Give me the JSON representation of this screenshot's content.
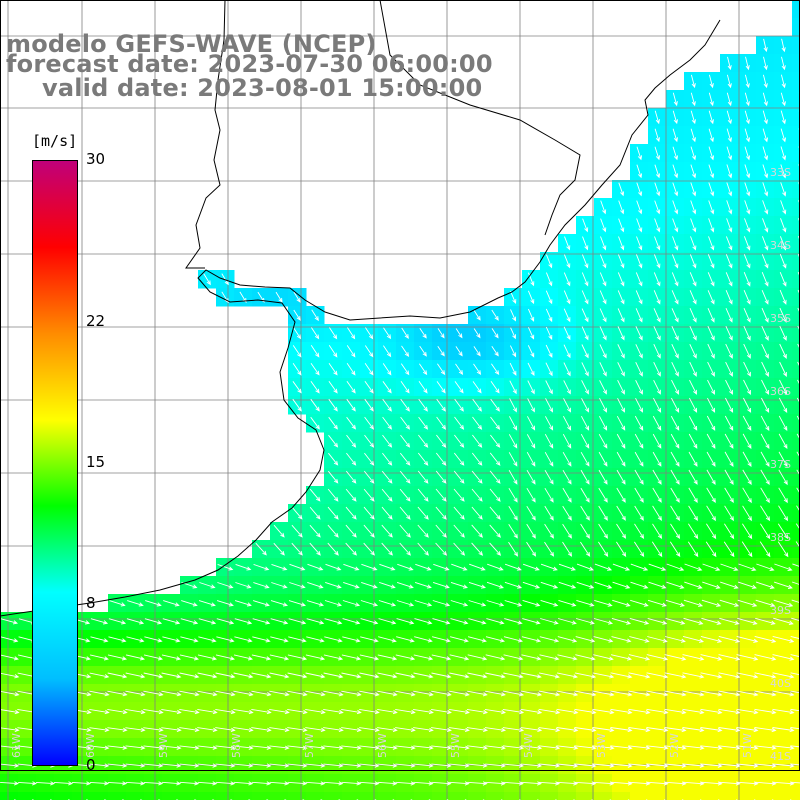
{
  "title": {
    "line1": "modelo GEFS-WAVE (NCEP)",
    "line2": "forecast date: 2023-07-30 06:00:00",
    "line3": "valid date: 2023-08-01 15:00:00"
  },
  "colorbar": {
    "unit": "[m/s]",
    "ticks": [
      {
        "value": 30,
        "label": "30"
      },
      {
        "value": 22,
        "label": "22"
      },
      {
        "value": 15,
        "label": "15"
      },
      {
        "value": 8,
        "label": "8"
      },
      {
        "value": 0,
        "label": "0"
      }
    ],
    "range": [
      0,
      30
    ],
    "colors": [
      "#0000ff",
      "#00bfff",
      "#00ffff",
      "#00ff00",
      "#ffff00",
      "#ff8c00",
      "#ff0000",
      "#c0007a"
    ]
  },
  "map": {
    "lat_labels": [
      "33S",
      "34S",
      "35S",
      "36S",
      "37S",
      "38S",
      "39S",
      "40S",
      "41S"
    ],
    "lon_labels": [
      "61W",
      "60W",
      "59W",
      "58W",
      "57W",
      "56W",
      "55W",
      "54W",
      "53W",
      "52W",
      "51W"
    ],
    "land_color": "#ffffff",
    "grid_color": "#808080",
    "arrow_color": "#ffffff",
    "coast_color": "#000000"
  }
}
